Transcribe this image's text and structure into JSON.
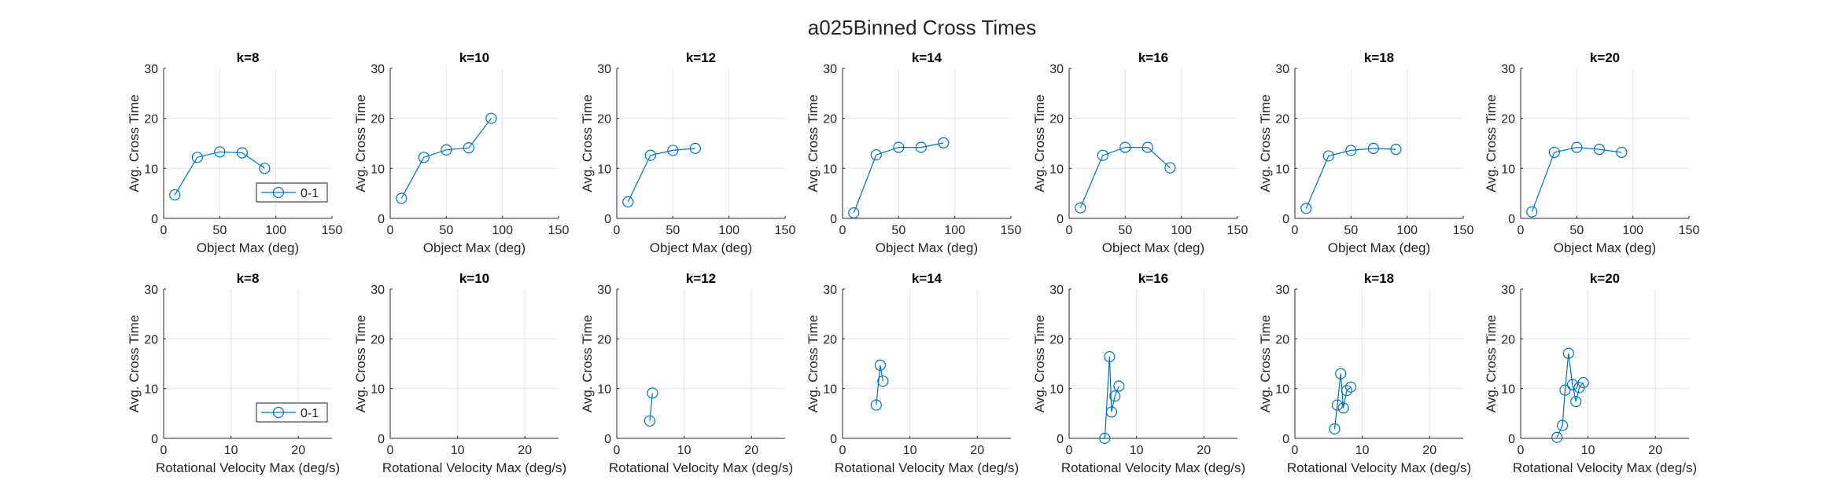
{
  "title": "a025Binned Cross Times",
  "colors": {
    "series": "#0072BD",
    "grid": "#e6e6e6",
    "axis": "#262626"
  },
  "chart_data": [
    {
      "type": "line",
      "title": "k=8",
      "xlabel": "Object Max (deg)",
      "ylabel": "Avg. Cross Time",
      "xlim": [
        0,
        150
      ],
      "ylim": [
        0,
        30
      ],
      "xticks": [
        0,
        50,
        100,
        150
      ],
      "yticks": [
        0,
        10,
        20,
        30
      ],
      "grid": true,
      "legend": "bottom-right",
      "series": [
        {
          "name": "0-1",
          "marker": "circle",
          "x": [
            10,
            30,
            50,
            70,
            90
          ],
          "y": [
            4.7,
            12.2,
            13.3,
            13.1,
            10.0
          ]
        }
      ]
    },
    {
      "type": "line",
      "title": "k=10",
      "xlabel": "Object Max (deg)",
      "ylabel": "Avg. Cross Time",
      "xlim": [
        0,
        150
      ],
      "ylim": [
        0,
        30
      ],
      "xticks": [
        0,
        50,
        100,
        150
      ],
      "yticks": [
        0,
        10,
        20,
        30
      ],
      "grid": true,
      "series": [
        {
          "marker": "circle",
          "x": [
            10,
            30,
            50,
            70,
            90
          ],
          "y": [
            4.0,
            12.2,
            13.7,
            14.1,
            20.0
          ]
        }
      ]
    },
    {
      "type": "line",
      "title": "k=12",
      "xlabel": "Object Max (deg)",
      "ylabel": "Avg. Cross Time",
      "xlim": [
        0,
        150
      ],
      "ylim": [
        0,
        30
      ],
      "xticks": [
        0,
        50,
        100,
        150
      ],
      "yticks": [
        0,
        10,
        20,
        30
      ],
      "grid": true,
      "series": [
        {
          "marker": "circle",
          "x": [
            10,
            30,
            50,
            70
          ],
          "y": [
            3.3,
            12.6,
            13.6,
            14.0
          ]
        }
      ]
    },
    {
      "type": "line",
      "title": "k=14",
      "xlabel": "Object Max (deg)",
      "ylabel": "Avg. Cross Time",
      "xlim": [
        0,
        150
      ],
      "ylim": [
        0,
        30
      ],
      "xticks": [
        0,
        50,
        100,
        150
      ],
      "yticks": [
        0,
        10,
        20,
        30
      ],
      "grid": true,
      "series": [
        {
          "marker": "circle",
          "x": [
            10,
            30,
            50,
            70,
            90
          ],
          "y": [
            1.1,
            12.7,
            14.2,
            14.2,
            15.1
          ]
        }
      ]
    },
    {
      "type": "line",
      "title": "k=16",
      "xlabel": "Object Max (deg)",
      "ylabel": "Avg. Cross Time",
      "xlim": [
        0,
        150
      ],
      "ylim": [
        0,
        30
      ],
      "xticks": [
        0,
        50,
        100,
        150
      ],
      "yticks": [
        0,
        10,
        20,
        30
      ],
      "grid": true,
      "series": [
        {
          "marker": "circle",
          "x": [
            10,
            30,
            50,
            70,
            90
          ],
          "y": [
            2.1,
            12.6,
            14.2,
            14.2,
            10.1
          ]
        }
      ]
    },
    {
      "type": "line",
      "title": "k=18",
      "xlabel": "Object Max (deg)",
      "ylabel": "Avg. Cross Time",
      "xlim": [
        0,
        150
      ],
      "ylim": [
        0,
        30
      ],
      "xticks": [
        0,
        50,
        100,
        150
      ],
      "yticks": [
        0,
        10,
        20,
        30
      ],
      "grid": true,
      "series": [
        {
          "marker": "circle",
          "x": [
            10,
            30,
            50,
            70,
            90
          ],
          "y": [
            2.0,
            12.5,
            13.6,
            14.0,
            13.8
          ]
        }
      ]
    },
    {
      "type": "line",
      "title": "k=20",
      "xlabel": "Object Max (deg)",
      "ylabel": "Avg. Cross Time",
      "xlim": [
        0,
        150
      ],
      "ylim": [
        0,
        30
      ],
      "xticks": [
        0,
        50,
        100,
        150
      ],
      "yticks": [
        0,
        10,
        20,
        30
      ],
      "grid": true,
      "series": [
        {
          "marker": "circle",
          "x": [
            10,
            30,
            50,
            70,
            90
          ],
          "y": [
            1.3,
            13.2,
            14.2,
            13.8,
            13.2
          ]
        }
      ]
    },
    {
      "type": "line",
      "title": "k=8",
      "xlabel": "Rotational Velocity Max (deg/s)",
      "ylabel": "Avg. Cross Time",
      "xlim": [
        0,
        25
      ],
      "ylim": [
        0,
        30
      ],
      "xticks": [
        0,
        10,
        20
      ],
      "yticks": [
        0,
        10,
        20,
        30
      ],
      "grid": true,
      "legend": "bottom-right",
      "series": [
        {
          "name": "0-1",
          "marker": "circle",
          "x": [],
          "y": []
        }
      ]
    },
    {
      "type": "line",
      "title": "k=10",
      "xlabel": "Rotational Velocity Max (deg/s)",
      "ylabel": "Avg. Cross Time",
      "xlim": [
        0,
        25
      ],
      "ylim": [
        0,
        30
      ],
      "xticks": [
        0,
        10,
        20
      ],
      "yticks": [
        0,
        10,
        20,
        30
      ],
      "grid": true,
      "series": [
        {
          "marker": "circle",
          "x": [],
          "y": []
        }
      ]
    },
    {
      "type": "line",
      "title": "k=12",
      "xlabel": "Rotational Velocity Max (deg/s)",
      "ylabel": "Avg. Cross Time",
      "xlim": [
        0,
        25
      ],
      "ylim": [
        0,
        30
      ],
      "xticks": [
        0,
        10,
        20
      ],
      "yticks": [
        0,
        10,
        20,
        30
      ],
      "grid": true,
      "series": [
        {
          "marker": "circle",
          "x": [
            4.9,
            5.3
          ],
          "y": [
            3.5,
            9.1
          ]
        }
      ]
    },
    {
      "type": "line",
      "title": "k=14",
      "xlabel": "Rotational Velocity Max (deg/s)",
      "ylabel": "Avg. Cross Time",
      "xlim": [
        0,
        25
      ],
      "ylim": [
        0,
        30
      ],
      "xticks": [
        0,
        10,
        20
      ],
      "yticks": [
        0,
        10,
        20,
        30
      ],
      "grid": true,
      "series": [
        {
          "marker": "circle",
          "x": [
            5.0,
            5.6,
            6.0
          ],
          "y": [
            6.7,
            14.7,
            11.5
          ]
        }
      ]
    },
    {
      "type": "line",
      "title": "k=16",
      "xlabel": "Rotational Velocity Max (deg/s)",
      "ylabel": "Avg. Cross Time",
      "xlim": [
        0,
        25
      ],
      "ylim": [
        0,
        30
      ],
      "xticks": [
        0,
        10,
        20
      ],
      "yticks": [
        0,
        10,
        20,
        30
      ],
      "grid": true,
      "series": [
        {
          "marker": "circle",
          "x": [
            5.3,
            6.0,
            6.3,
            6.8,
            7.4
          ],
          "y": [
            0.0,
            16.4,
            5.3,
            8.5,
            10.5
          ]
        }
      ]
    },
    {
      "type": "line",
      "title": "k=18",
      "xlabel": "Rotational Velocity Max (deg/s)",
      "ylabel": "Avg. Cross Time",
      "xlim": [
        0,
        25
      ],
      "ylim": [
        0,
        30
      ],
      "xticks": [
        0,
        10,
        20
      ],
      "yticks": [
        0,
        10,
        20,
        30
      ],
      "grid": true,
      "series": [
        {
          "marker": "circle",
          "x": [
            5.9,
            6.3,
            6.8,
            7.2,
            7.7,
            8.3
          ],
          "y": [
            1.9,
            6.7,
            13.0,
            6.1,
            9.6,
            10.3
          ]
        }
      ]
    },
    {
      "type": "line",
      "title": "k=20",
      "xlabel": "Rotational Velocity Max (deg/s)",
      "ylabel": "Avg. Cross Time",
      "xlim": [
        0,
        25
      ],
      "ylim": [
        0,
        30
      ],
      "xticks": [
        0,
        10,
        20
      ],
      "yticks": [
        0,
        10,
        20,
        30
      ],
      "grid": true,
      "series": [
        {
          "marker": "circle",
          "x": [
            5.4,
            6.2,
            6.6,
            7.1,
            7.7,
            8.2,
            8.7,
            9.3
          ],
          "y": [
            0.2,
            2.6,
            9.7,
            17.1,
            10.8,
            7.4,
            10.2,
            11.2
          ]
        }
      ]
    }
  ]
}
